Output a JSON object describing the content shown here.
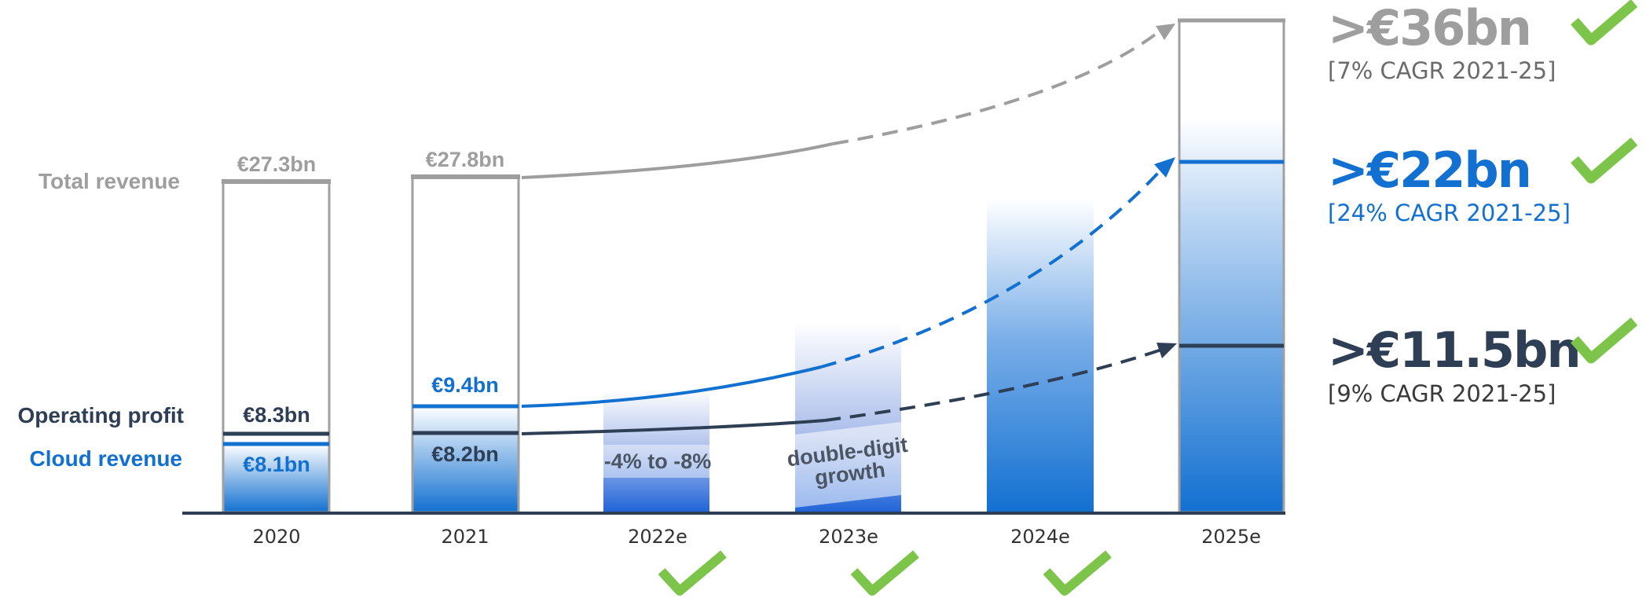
{
  "colors": {
    "grey": "#9e9e9e",
    "blue": "#1270d1",
    "navy": "#2e3e54",
    "check": "#7cc54a",
    "text_dark": "#333333"
  },
  "icons": {
    "check": "check-icon"
  },
  "row_labels": {
    "total_revenue": "Total revenue",
    "operating_profit": "Operating profit",
    "cloud_revenue": "Cloud revenue"
  },
  "chart_data": {
    "type": "bar",
    "categories": [
      "2020",
      "2021",
      "2022e",
      "2023e",
      "2024e",
      "2025e"
    ],
    "series": [
      {
        "name": "Total revenue",
        "values": [
          27.3,
          27.8,
          null,
          null,
          null,
          36
        ],
        "labels": [
          "€27.3bn",
          "€27.8bn",
          "",
          "",
          "",
          ">€36bn"
        ]
      },
      {
        "name": "Cloud revenue",
        "values": [
          8.1,
          9.4,
          null,
          null,
          null,
          22
        ],
        "labels": [
          "€8.1bn",
          "€9.4bn",
          "",
          "",
          "",
          ">€22bn"
        ]
      },
      {
        "name": "Operating profit",
        "values": [
          8.3,
          8.2,
          null,
          null,
          null,
          11.5
        ],
        "labels": [
          "€8.3bn",
          "€8.2bn",
          "",
          "",
          "",
          ">€11.5bn"
        ]
      }
    ],
    "annotations": {
      "y2022e": "-4% to -8%",
      "y2023e_line1": "double-digit",
      "y2023e_line2": "growth"
    },
    "targets": [
      {
        "value": ">€36bn",
        "cagr": "[7% CAGR 2021-25]"
      },
      {
        "value": ">€22bn",
        "cagr": "[24% CAGR 2021-25]"
      },
      {
        "value": ">€11.5bn",
        "cagr": "[9% CAGR 2021-25]"
      }
    ],
    "checked_years": [
      "2022e",
      "2023e",
      "2024e"
    ],
    "ylim": [
      0,
      36
    ],
    "grid": false,
    "legend": "left"
  }
}
